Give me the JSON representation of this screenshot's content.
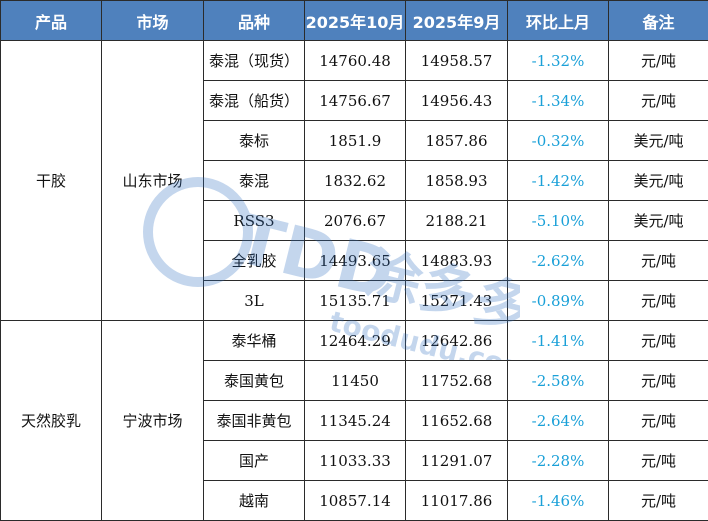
{
  "headers": [
    "产品",
    "市场",
    "品种",
    "2025年10月",
    "2025年9月",
    "环比上月",
    "备注"
  ],
  "groups": [
    {
      "product": "干胶",
      "market": "山东市场",
      "rows": [
        {
          "variety": "泰混（现货）",
          "oct": "14760.48",
          "sep": "14958.57",
          "change": "-1.32%",
          "unit": "元/吨"
        },
        {
          "variety": "泰混（船货）",
          "oct": "14756.67",
          "sep": "14956.43",
          "change": "-1.34%",
          "unit": "元/吨"
        },
        {
          "variety": "泰标",
          "oct": "1851.9",
          "sep": "1857.86",
          "change": "-0.32%",
          "unit": "美元/吨"
        },
        {
          "variety": "泰混",
          "oct": "1832.62",
          "sep": "1858.93",
          "change": "-1.42%",
          "unit": "美元/吨"
        },
        {
          "variety": "RSS3",
          "oct": "2076.67",
          "sep": "2188.21",
          "change": "-5.10%",
          "unit": "美元/吨"
        },
        {
          "variety": "全乳胶",
          "oct": "14493.65",
          "sep": "14883.93",
          "change": "-2.62%",
          "unit": "元/吨"
        },
        {
          "variety": "3L",
          "oct": "15135.71",
          "sep": "15271.43",
          "change": "-0.89%",
          "unit": "元/吨"
        }
      ]
    },
    {
      "product": "天然胶乳",
      "market": "宁波市场",
      "rows": [
        {
          "variety": "泰华桶",
          "oct": "12464.29",
          "sep": "12642.86",
          "change": "-1.41%",
          "unit": "元/吨"
        },
        {
          "variety": "泰国黄包",
          "oct": "11450",
          "sep": "11752.68",
          "change": "-2.58%",
          "unit": "元/吨"
        },
        {
          "variety": "泰国非黄包",
          "oct": "11345.24",
          "sep": "11652.68",
          "change": "-2.64%",
          "unit": "元/吨"
        },
        {
          "variety": "国产",
          "oct": "11033.33",
          "sep": "11291.07",
          "change": "-2.28%",
          "unit": "元/吨"
        },
        {
          "variety": "越南",
          "oct": "10857.14",
          "sep": "11017.86",
          "change": "-1.46%",
          "unit": "元/吨"
        }
      ]
    }
  ],
  "watermark": {
    "logo": "TDD",
    "name": "涂多多",
    "url": "toodudu.com",
    "color": "#2f6fc0"
  },
  "colors": {
    "header_bg": "#4f81bd",
    "header_text": "#ffffff",
    "change_text": "#1aa0d8",
    "border": "#2b2b2b"
  }
}
